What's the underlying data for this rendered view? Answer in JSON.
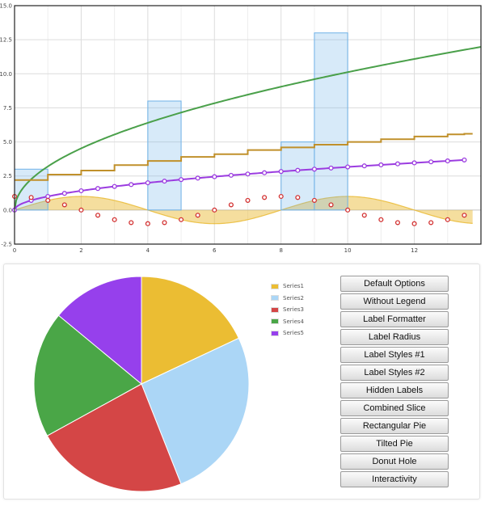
{
  "chart_data": [
    {
      "type": "line",
      "xlim": [
        0,
        14
      ],
      "ylim": [
        -2.5,
        15
      ],
      "x_ticks": [
        0,
        2,
        4,
        6,
        8,
        10,
        12
      ],
      "y_ticks": [
        -2.5,
        0.0,
        2.5,
        5.0,
        7.5,
        10.0,
        12.5,
        15.0
      ],
      "y_tick_labels": [
        "-2.5",
        "0.0",
        "2.5",
        "5.0",
        "7.5",
        "10.0",
        "12.5",
        "15.0"
      ],
      "grid": true,
      "series": [
        {
          "kind": "area",
          "color": "#e8b629",
          "note_shape": "sine",
          "amplitude": 1.0,
          "x_start": 0,
          "x_end": 13.75,
          "step": 0.25
        },
        {
          "kind": "bars",
          "color": "#6fb2e8",
          "x": [
            0,
            4,
            8,
            9
          ],
          "widths": [
            1,
            1,
            1,
            1
          ],
          "values": [
            3,
            8,
            5,
            13
          ]
        },
        {
          "kind": "line",
          "color": "#4aa04a",
          "formula": "sqrt",
          "scale": 3.2,
          "x_start": 0,
          "x_end": 14
        },
        {
          "kind": "steps",
          "color": "#c0902b",
          "x": [
            0,
            1,
            2,
            3,
            4,
            5,
            6,
            7,
            8,
            9,
            10,
            11,
            12,
            13,
            13.5
          ],
          "values": [
            2.2,
            2.6,
            2.9,
            3.3,
            3.6,
            3.9,
            4.1,
            4.4,
            4.6,
            4.8,
            5.0,
            5.2,
            5.4,
            5.55,
            5.6
          ]
        },
        {
          "kind": "line-points",
          "color": "#9b3ce0",
          "formula": "sqrt",
          "scale": 1.0,
          "x_start": 0,
          "x_end": 13.5,
          "step": 0.5
        },
        {
          "kind": "points",
          "color": "#d33333",
          "formula": "cos",
          "amplitude": 1.0,
          "x_start": 0,
          "x_end": 13.5,
          "step": 0.5
        }
      ]
    },
    {
      "type": "pie",
      "categories": [
        "Series1",
        "Series2",
        "Series3",
        "Series4",
        "Series5"
      ],
      "values": [
        18,
        26,
        23,
        19,
        14
      ],
      "colors": [
        "#ebbd33",
        "#abd6f6",
        "#d44646",
        "#4aa647",
        "#9640ec"
      ]
    }
  ],
  "buttons": [
    "Default Options",
    "Without Legend",
    "Label Formatter",
    "Label Radius",
    "Label Styles #1",
    "Label Styles #2",
    "Hidden Labels",
    "Combined Slice",
    "Rectangular Pie",
    "Tilted Pie",
    "Donut Hole",
    "Interactivity"
  ]
}
